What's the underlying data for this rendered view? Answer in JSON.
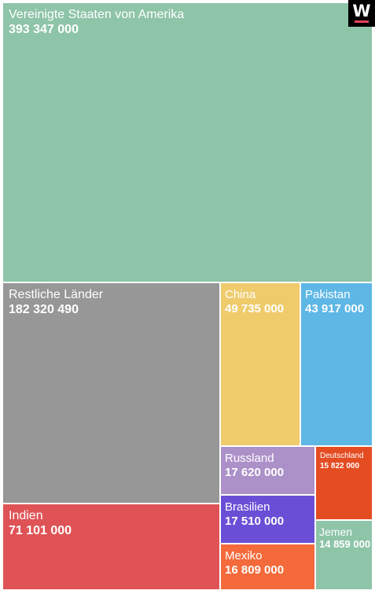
{
  "chart_data": {
    "type": "treemap",
    "items": [
      {
        "name": "Vereinigte Staaten von Amerika",
        "value_label": "393 347 000",
        "value": 393347000,
        "color": "#8ec4a8"
      },
      {
        "name": "Restliche Länder",
        "value_label": "182 320 490",
        "value": 182320490,
        "color": "#979797"
      },
      {
        "name": "China",
        "value_label": "49 735 000",
        "value": 49735000,
        "color": "#efcb6c"
      },
      {
        "name": "Pakistan",
        "value_label": "43 917 000",
        "value": 43917000,
        "color": "#5eb7e5"
      },
      {
        "name": "Indien",
        "value_label": "71 101 000",
        "value": 71101000,
        "color": "#df5356"
      },
      {
        "name": "Russland",
        "value_label": "17 620 000",
        "value": 17620000,
        "color": "#ac90c8"
      },
      {
        "name": "Brasilien",
        "value_label": "17 510 000",
        "value": 17510000,
        "color": "#6a4fd6"
      },
      {
        "name": "Mexiko",
        "value_label": "16 809 000",
        "value": 16809000,
        "color": "#f46a3b"
      },
      {
        "name": "Deutschland",
        "value_label": "15 822 000",
        "value": 15822000,
        "color": "#e44c22"
      },
      {
        "name": "Jemen",
        "value_label": "14 859 000",
        "value": 14859000,
        "color": "#8ec4a8"
      }
    ]
  },
  "logo": {
    "letter": "W",
    "icon": "w-logo-icon",
    "accent_color": "#e8415b"
  }
}
